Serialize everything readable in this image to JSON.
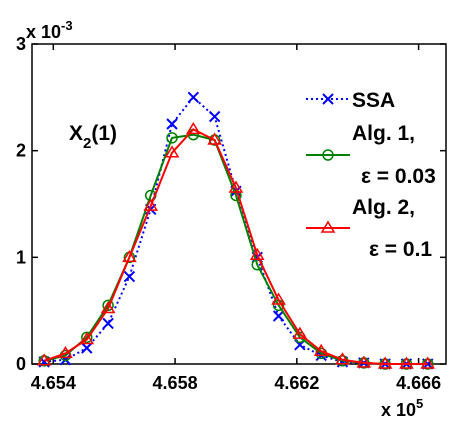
{
  "chart_data": {
    "type": "line",
    "title": "",
    "xlabel": "",
    "ylabel": "",
    "annotation": {
      "main": "X",
      "sub": "2",
      "rest": "(1)"
    },
    "x_multiplier": {
      "base": "x 10",
      "exp": "5"
    },
    "y_multiplier": {
      "base": "x 10",
      "exp": "-3"
    },
    "xlim": [
      465330,
      466690
    ],
    "ylim": [
      0,
      0.003
    ],
    "xticks": [
      465400,
      465800,
      466200,
      466600
    ],
    "xtick_labels": [
      "4.654",
      "4.658",
      "4.662",
      "4.666"
    ],
    "yticks": [
      0,
      0.001,
      0.002,
      0.003
    ],
    "ytick_labels": [
      "0",
      "1",
      "2",
      "3"
    ],
    "grid": false,
    "legend_position": "top-right",
    "legend": [
      {
        "lines": [
          "SSA"
        ]
      },
      {
        "lines": [
          "Alg. 1,",
          "ε = 0.03"
        ]
      },
      {
        "lines": [
          "Alg. 2,",
          "ε = 0.1"
        ]
      }
    ],
    "x": [
      465370,
      465440,
      465510,
      465580,
      465650,
      465720,
      465790,
      465860,
      465930,
      466000,
      466070,
      466140,
      466210,
      466280,
      466350,
      466420,
      466490,
      466560,
      466630
    ],
    "series": [
      {
        "name": "SSA",
        "color": "#0000ff",
        "dash": "dotted",
        "marker": "x",
        "values": [
          2e-05,
          4e-05,
          0.00015,
          0.00038,
          0.00082,
          0.00145,
          0.00225,
          0.0025,
          0.00232,
          0.00162,
          0.001,
          0.00045,
          0.00018,
          8e-05,
          2e-05,
          1e-05,
          0,
          0,
          0
        ]
      },
      {
        "name": "Alg. 1, ε = 0.03",
        "color": "#008000",
        "dash": "solid",
        "marker": "circle",
        "values": [
          3e-05,
          8e-05,
          0.00025,
          0.00055,
          0.001,
          0.00158,
          0.00212,
          0.00215,
          0.0021,
          0.00158,
          0.00093,
          0.00055,
          0.00025,
          0.0001,
          3e-05,
          1e-05,
          0,
          0,
          0
        ]
      },
      {
        "name": "Alg. 2, ε = 0.1",
        "color": "#ff0000",
        "dash": "solid",
        "marker": "triangle",
        "values": [
          3e-05,
          0.0001,
          0.00023,
          0.00052,
          0.001,
          0.00148,
          0.00198,
          0.0022,
          0.0021,
          0.00165,
          0.00102,
          0.0006,
          0.00028,
          0.00012,
          4e-05,
          1e-05,
          0,
          0,
          0
        ]
      }
    ]
  }
}
